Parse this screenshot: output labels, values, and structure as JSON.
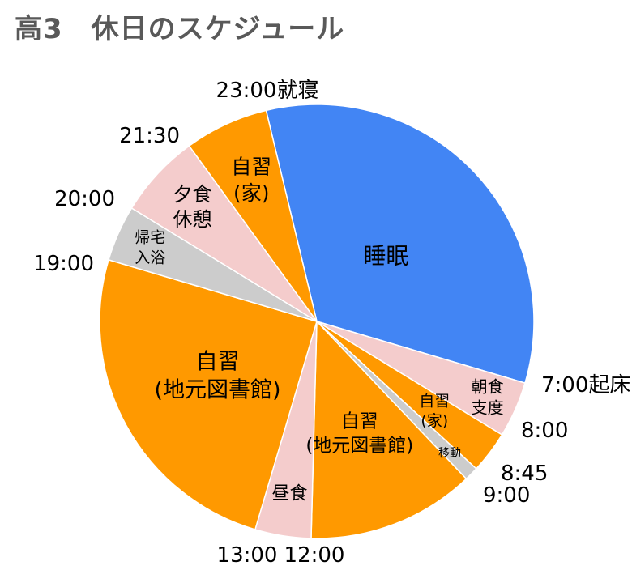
{
  "chart_data": {
    "type": "pie",
    "title": "高3　休日のスケジュール",
    "unit": "hours",
    "start_time": "23:00",
    "slices": [
      {
        "label": "睡眠",
        "start": "23:00",
        "end": "7:00",
        "hours": 8,
        "color": "#4285f4"
      },
      {
        "label": "朝食\n支度",
        "start": "7:00",
        "end": "8:00",
        "hours": 1,
        "color": "#f4cccc"
      },
      {
        "label": "自習\n(家)",
        "start": "8:00",
        "end": "8:45",
        "hours": 0.75,
        "color": "#ff9900"
      },
      {
        "label": "移動",
        "start": "8:45",
        "end": "9:00",
        "hours": 0.25,
        "color": "#cccccc"
      },
      {
        "label": "自習\n(地元図書館)",
        "start": "9:00",
        "end": "12:00",
        "hours": 3,
        "color": "#ff9900"
      },
      {
        "label": "昼食",
        "start": "12:00",
        "end": "13:00",
        "hours": 1,
        "color": "#f4cccc"
      },
      {
        "label": "自習\n(地元図書館)",
        "start": "13:00",
        "end": "19:00",
        "hours": 6,
        "color": "#ff9900"
      },
      {
        "label": "帰宅\n入浴",
        "start": "19:00",
        "end": "20:00",
        "hours": 1,
        "color": "#cccccc"
      },
      {
        "label": "夕食\n休憩",
        "start": "20:00",
        "end": "21:30",
        "hours": 1.5,
        "color": "#f4cccc"
      },
      {
        "label": "自習\n(家)",
        "start": "21:30",
        "end": "23:00",
        "hours": 1.5,
        "color": "#ff9900"
      }
    ],
    "time_labels": [
      "23:00就寝",
      "7:00起床",
      "8:00",
      "8:45",
      "9:00",
      "12:00",
      "13:00",
      "19:00",
      "20:00",
      "21:30"
    ]
  }
}
